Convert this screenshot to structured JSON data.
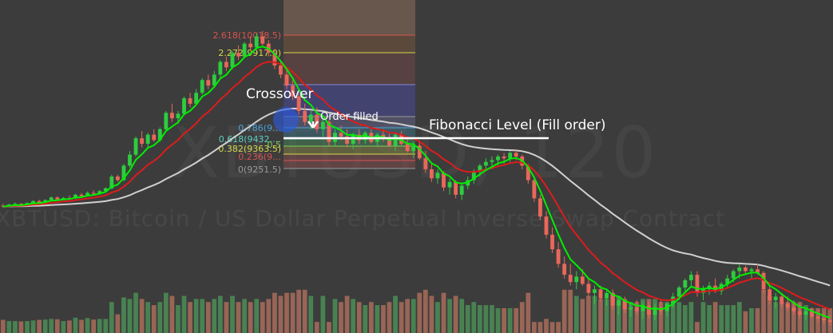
{
  "watermark": {
    "symbol_interval": "XBTUSD, 120",
    "description": "XBTUSD: Bitcoin / US Dollar Perpetual Inverse Swap Contract"
  },
  "annotations": {
    "crossover": "Crossover",
    "order_filled": "Order filled",
    "fib_level": "Fibonacci Level (Fill order)"
  },
  "fib_labels": [
    {
      "text": "2.618(10018.5)",
      "color": "#d9534f"
    },
    {
      "text": "2.272(9917.0)",
      "color": "#d4d94a"
    },
    {
      "text": "0.786(9…",
      "color": "#4aa3d9"
    },
    {
      "text": "0.618(9432.…",
      "color": "#5ad0c0"
    },
    {
      "text": "0.5",
      "color": "#7ecb5a"
    },
    {
      "text": "0.382(9363.5)",
      "color": "#d4d94a"
    },
    {
      "text": "0.236(9…",
      "color": "#d9534f"
    },
    {
      "text": "0(9251.5)",
      "color": "#9a9a9a"
    }
  ],
  "colors": {
    "background": "#3c3c3c",
    "up_candle": "#2ecc40",
    "down_candle": "#e8685a",
    "ema_fast": "#00ee00",
    "ema_slow": "#dd1c1c",
    "ma_long": "#d0d0d0",
    "vol_up": "#4e9a5a",
    "vol_down": "#b8735f"
  },
  "chart_data": {
    "type": "candlestick",
    "symbol": "XBTUSD",
    "interval": "120",
    "ohlc": [
      [
        9000,
        9010,
        8988,
        8995
      ],
      [
        8995,
        9010,
        8992,
        9006
      ],
      [
        9006,
        9018,
        9000,
        9010
      ],
      [
        9010,
        9014,
        8997,
        9003
      ],
      [
        9003,
        9018,
        9000,
        9014
      ],
      [
        9014,
        9030,
        9010,
        9025
      ],
      [
        9025,
        9032,
        9010,
        9016
      ],
      [
        9016,
        9035,
        9012,
        9030
      ],
      [
        9030,
        9050,
        9025,
        9045
      ],
      [
        9045,
        9052,
        9028,
        9034
      ],
      [
        9034,
        9048,
        9030,
        9042
      ],
      [
        9042,
        9055,
        9035,
        9040
      ],
      [
        9040,
        9065,
        9036,
        9060
      ],
      [
        9060,
        9070,
        9048,
        9052
      ],
      [
        9052,
        9078,
        9050,
        9070
      ],
      [
        9070,
        9085,
        9062,
        9068
      ],
      [
        9068,
        9085,
        9060,
        9080
      ],
      [
        9080,
        9100,
        9075,
        9095
      ],
      [
        9095,
        9170,
        9090,
        9160
      ],
      [
        9160,
        9170,
        9130,
        9140
      ],
      [
        9140,
        9230,
        9135,
        9220
      ],
      [
        9220,
        9300,
        9210,
        9280
      ],
      [
        9280,
        9380,
        9270,
        9370
      ],
      [
        9370,
        9410,
        9320,
        9340
      ],
      [
        9340,
        9400,
        9320,
        9390
      ],
      [
        9390,
        9420,
        9350,
        9360
      ],
      [
        9360,
        9430,
        9350,
        9420
      ],
      [
        9420,
        9520,
        9410,
        9510
      ],
      [
        9510,
        9560,
        9460,
        9480
      ],
      [
        9480,
        9520,
        9450,
        9505
      ],
      [
        9505,
        9600,
        9500,
        9590
      ],
      [
        9590,
        9620,
        9540,
        9560
      ],
      [
        9560,
        9640,
        9550,
        9620
      ],
      [
        9620,
        9700,
        9610,
        9690
      ],
      [
        9690,
        9720,
        9640,
        9660
      ],
      [
        9660,
        9740,
        9650,
        9720
      ],
      [
        9720,
        9800,
        9700,
        9790
      ],
      [
        9790,
        9820,
        9740,
        9760
      ],
      [
        9760,
        9850,
        9750,
        9840
      ],
      [
        9840,
        9880,
        9800,
        9820
      ],
      [
        9820,
        9900,
        9810,
        9890
      ],
      [
        9890,
        9930,
        9850,
        9870
      ],
      [
        9870,
        9950,
        9860,
        9930
      ],
      [
        9930,
        9960,
        9880,
        9890
      ],
      [
        9890,
        9910,
        9820,
        9840
      ],
      [
        9840,
        9860,
        9750,
        9770
      ],
      [
        9770,
        9800,
        9700,
        9720
      ],
      [
        9720,
        9750,
        9640,
        9660
      ],
      [
        9660,
        9690,
        9580,
        9600
      ],
      [
        9600,
        9620,
        9500,
        9520
      ],
      [
        9520,
        9560,
        9440,
        9460
      ],
      [
        9460,
        9520,
        9420,
        9500
      ],
      [
        9500,
        9540,
        9400,
        9420
      ],
      [
        9420,
        9480,
        9380,
        9460
      ],
      [
        9460,
        9470,
        9330,
        9350
      ],
      [
        9350,
        9420,
        9330,
        9400
      ],
      [
        9400,
        9440,
        9360,
        9380
      ],
      [
        9380,
        9420,
        9320,
        9340
      ],
      [
        9340,
        9400,
        9310,
        9390
      ],
      [
        9390,
        9420,
        9340,
        9360
      ],
      [
        9360,
        9410,
        9340,
        9400
      ],
      [
        9400,
        9420,
        9340,
        9350
      ],
      [
        9350,
        9400,
        9330,
        9390
      ],
      [
        9390,
        9420,
        9350,
        9370
      ],
      [
        9370,
        9400,
        9320,
        9330
      ],
      [
        9330,
        9400,
        9300,
        9390
      ],
      [
        9390,
        9410,
        9330,
        9340
      ],
      [
        9340,
        9380,
        9290,
        9300
      ],
      [
        9300,
        9350,
        9260,
        9330
      ],
      [
        9330,
        9360,
        9250,
        9260
      ],
      [
        9260,
        9300,
        9180,
        9200
      ],
      [
        9200,
        9230,
        9130,
        9150
      ],
      [
        9150,
        9200,
        9120,
        9180
      ],
      [
        9180,
        9190,
        9080,
        9100
      ],
      [
        9100,
        9150,
        9060,
        9130
      ],
      [
        9130,
        9140,
        9040,
        9060
      ],
      [
        9060,
        9120,
        9030,
        9110
      ],
      [
        9110,
        9160,
        9090,
        9140
      ],
      [
        9140,
        9200,
        9120,
        9190
      ],
      [
        9190,
        9230,
        9160,
        9220
      ],
      [
        9220,
        9260,
        9190,
        9240
      ],
      [
        9240,
        9270,
        9200,
        9250
      ],
      [
        9250,
        9280,
        9220,
        9270
      ],
      [
        9270,
        9290,
        9230,
        9260
      ],
      [
        9260,
        9300,
        9240,
        9290
      ],
      [
        9290,
        9310,
        9250,
        9270
      ],
      [
        9270,
        9280,
        9200,
        9220
      ],
      [
        9220,
        9230,
        9120,
        9140
      ],
      [
        9140,
        9160,
        9020,
        9040
      ],
      [
        9040,
        9060,
        8920,
        8940
      ],
      [
        8940,
        8970,
        8820,
        8840
      ],
      [
        8840,
        8880,
        8740,
        8760
      ],
      [
        8760,
        8800,
        8660,
        8680
      ],
      [
        8680,
        8720,
        8600,
        8620
      ],
      [
        8620,
        8680,
        8560,
        8580
      ],
      [
        8580,
        8640,
        8540,
        8610
      ],
      [
        8610,
        8650,
        8560,
        8570
      ],
      [
        8570,
        8600,
        8500,
        8520
      ],
      [
        8520,
        8560,
        8460,
        8540
      ],
      [
        8540,
        8560,
        8470,
        8490
      ],
      [
        8490,
        8540,
        8450,
        8520
      ],
      [
        8520,
        8540,
        8430,
        8450
      ],
      [
        8450,
        8500,
        8400,
        8480
      ],
      [
        8480,
        8500,
        8410,
        8430
      ],
      [
        8430,
        8470,
        8390,
        8440
      ],
      [
        8440,
        8480,
        8400,
        8420
      ],
      [
        8420,
        8470,
        8380,
        8450
      ],
      [
        8450,
        8470,
        8380,
        8400
      ],
      [
        8400,
        8460,
        8370,
        8440
      ],
      [
        8440,
        8480,
        8400,
        8420
      ],
      [
        8420,
        8470,
        8390,
        8460
      ],
      [
        8460,
        8520,
        8440,
        8500
      ],
      [
        8500,
        8560,
        8480,
        8550
      ],
      [
        8550,
        8600,
        8530,
        8590
      ],
      [
        8590,
        8640,
        8560,
        8620
      ],
      [
        8620,
        8640,
        8500,
        8520
      ],
      [
        8520,
        8560,
        8480,
        8540
      ],
      [
        8540,
        8580,
        8510,
        8560
      ],
      [
        8560,
        8600,
        8520,
        8530
      ],
      [
        8530,
        8580,
        8510,
        8570
      ],
      [
        8570,
        8620,
        8550,
        8600
      ],
      [
        8600,
        8650,
        8580,
        8640
      ],
      [
        8640,
        8680,
        8600,
        8660
      ],
      [
        8660,
        8670,
        8620,
        8640
      ],
      [
        8640,
        8660,
        8600,
        8650
      ],
      [
        8650,
        8680,
        8620,
        8630
      ],
      [
        8630,
        8640,
        8520,
        8540
      ],
      [
        8540,
        8560,
        8460,
        8480
      ],
      [
        8480,
        8520,
        8440,
        8500
      ],
      [
        8500,
        8520,
        8440,
        8460
      ],
      [
        8460,
        8500,
        8420,
        8440
      ],
      [
        8440,
        8480,
        8400,
        8420
      ],
      [
        8420,
        8460,
        8380,
        8400
      ],
      [
        8400,
        8440,
        8370,
        8420
      ],
      [
        8420,
        8440,
        8380,
        8390
      ],
      [
        8390,
        8420,
        8360,
        8380
      ],
      [
        8380,
        8410,
        8350,
        8370
      ],
      [
        8370,
        8400,
        8340,
        8360
      ]
    ],
    "indicators": [
      "EMA fast (green)",
      "EMA slow (red)",
      "Long MA (grey)"
    ],
    "fibonacci_retracement": [
      {
        "level": 2.618,
        "price": 10018.5
      },
      {
        "level": 2.272,
        "price": 9917.0
      },
      {
        "level": 0.618,
        "price": 9432
      },
      {
        "level": 0.382,
        "price": 9363.5
      },
      {
        "level": 0,
        "price": 9251.5
      }
    ],
    "grid": false
  }
}
